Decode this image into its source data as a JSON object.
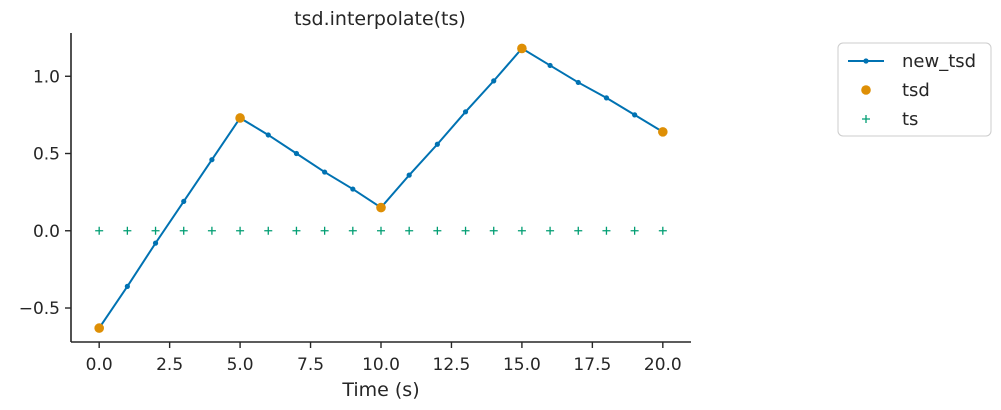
{
  "chart_data": {
    "type": "line",
    "title": "tsd.interpolate(ts)",
    "xlabel": "Time (s)",
    "ylabel": "",
    "xlim": [
      -1.0,
      21.0
    ],
    "ylim": [
      -0.72,
      1.28
    ],
    "x_ticks": [
      0.0,
      2.5,
      5.0,
      7.5,
      10.0,
      12.5,
      15.0,
      17.5,
      20.0
    ],
    "x_tick_labels": [
      "0.0",
      "2.5",
      "5.0",
      "7.5",
      "10.0",
      "12.5",
      "15.0",
      "17.5",
      "20.0"
    ],
    "y_ticks": [
      -0.5,
      0.0,
      0.5,
      1.0
    ],
    "y_tick_labels": [
      "−0.5",
      "0.0",
      "0.5",
      "1.0"
    ],
    "grid": false,
    "legend_position": "top-right, outside plot",
    "series": [
      {
        "name": "new_tsd",
        "style": "line-with-dot-markers",
        "color": "#0072b2",
        "x": [
          0,
          1,
          2,
          3,
          4,
          5,
          6,
          7,
          8,
          9,
          10,
          11,
          12,
          13,
          14,
          15,
          16,
          17,
          18,
          19,
          20
        ],
        "y": [
          -0.63,
          -0.36,
          -0.08,
          0.19,
          0.46,
          0.73,
          0.62,
          0.5,
          0.38,
          0.27,
          0.15,
          0.36,
          0.56,
          0.77,
          0.97,
          1.18,
          1.07,
          0.96,
          0.86,
          0.75,
          0.64
        ]
      },
      {
        "name": "tsd",
        "style": "circle-markers",
        "color": "#de8f05",
        "x": [
          0,
          5,
          10,
          15,
          20
        ],
        "y": [
          -0.63,
          0.73,
          0.15,
          1.18,
          0.64
        ]
      },
      {
        "name": "ts",
        "style": "plus-markers",
        "color": "#029e73",
        "x": [
          0,
          1,
          2,
          3,
          4,
          5,
          6,
          7,
          8,
          9,
          10,
          11,
          12,
          13,
          14,
          15,
          16,
          17,
          18,
          19,
          20
        ],
        "y": [
          0,
          0,
          0,
          0,
          0,
          0,
          0,
          0,
          0,
          0,
          0,
          0,
          0,
          0,
          0,
          0,
          0,
          0,
          0,
          0,
          0
        ]
      }
    ]
  }
}
